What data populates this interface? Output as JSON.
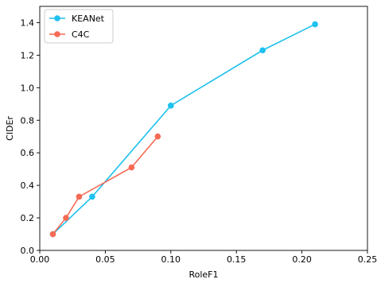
{
  "chart_data": {
    "type": "line",
    "xlabel": "RoleF1",
    "ylabel": "CIDEr",
    "xlim": [
      0.0,
      0.25
    ],
    "ylim": [
      0.0,
      1.5
    ],
    "xticks": [
      "0.00",
      "0.05",
      "0.10",
      "0.15",
      "0.20",
      "0.25"
    ],
    "yticks": [
      "0.0",
      "0.2",
      "0.4",
      "0.6",
      "0.8",
      "1.0",
      "1.2",
      "1.4"
    ],
    "grid": false,
    "legend": "top-left",
    "series": [
      {
        "name": "KEANet",
        "color": "#1ec1ef",
        "marker": "circle",
        "x": [
          0.01,
          0.04,
          0.1,
          0.17,
          0.21
        ],
        "y": [
          0.1,
          0.33,
          0.89,
          1.23,
          1.39
        ]
      },
      {
        "name": "C4C",
        "color": "#f76a55",
        "marker": "circle",
        "x": [
          0.01,
          0.02,
          0.03,
          0.07,
          0.09
        ],
        "y": [
          0.1,
          0.2,
          0.33,
          0.51,
          0.7
        ]
      }
    ]
  }
}
